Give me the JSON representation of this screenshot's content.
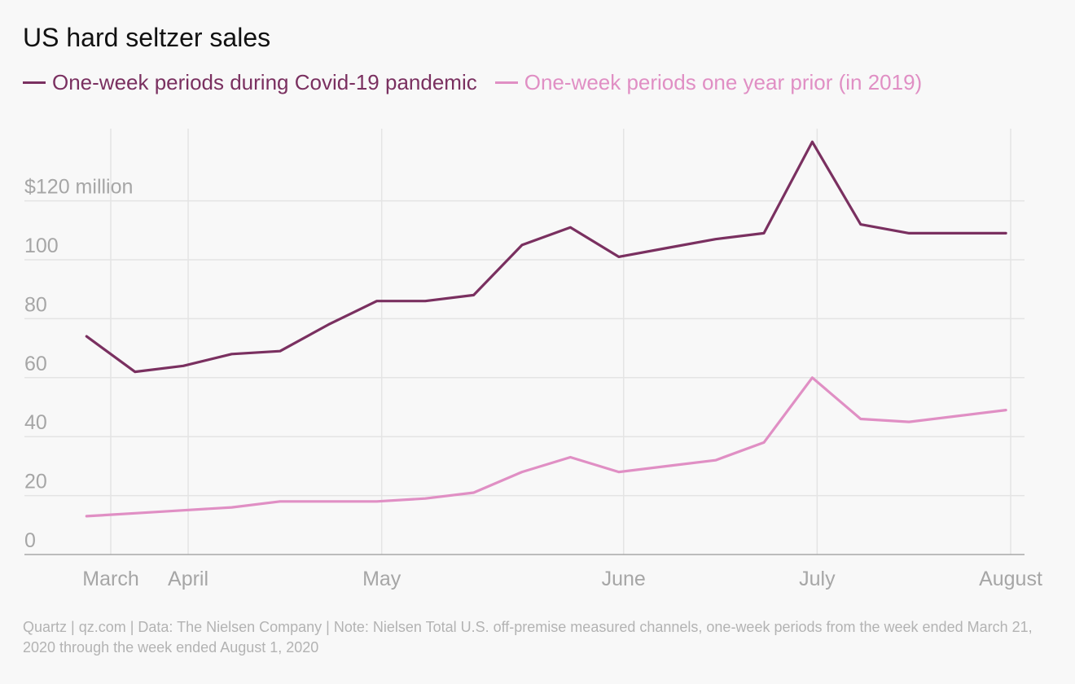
{
  "chart_data": {
    "type": "line",
    "title": "US hard seltzer sales",
    "x_tick_labels": [
      {
        "label": "March",
        "week": 0.5
      },
      {
        "label": "April",
        "week": 2.1
      },
      {
        "label": "May",
        "week": 6.1
      },
      {
        "label": "June",
        "week": 11.1
      },
      {
        "label": "July",
        "week": 15.1
      },
      {
        "label": "August",
        "week": 19.1
      }
    ],
    "y_tick_labels": [
      {
        "label": "0",
        "value": 0
      },
      {
        "label": "20",
        "value": 20
      },
      {
        "label": "40",
        "value": 40
      },
      {
        "label": "60",
        "value": 60
      },
      {
        "label": "80",
        "value": 80
      },
      {
        "label": "100",
        "value": 100
      },
      {
        "label": "$120 million",
        "value": 120
      }
    ],
    "ylim": [
      0,
      145
    ],
    "xlim": [
      0.5,
      19.1
    ],
    "grid": true,
    "legend_position": "top-left",
    "series": [
      {
        "name": "One-week periods during Covid-19 pandemic",
        "color": "#7a3060",
        "values": [
          74,
          62,
          64,
          68,
          69,
          78,
          86,
          86,
          88,
          105,
          111,
          101,
          104,
          107,
          109,
          140,
          112,
          109,
          109,
          109
        ]
      },
      {
        "name": "One-week periods one year prior (in 2019)",
        "color": "#e08fc4",
        "values": [
          13,
          14,
          15,
          16,
          18,
          18,
          18,
          19,
          21,
          28,
          33,
          28,
          30,
          32,
          38,
          60,
          46,
          45,
          47,
          49
        ]
      }
    ]
  },
  "footnote": "Quartz | qz.com | Data: The Nielsen Company | Note: Nielsen Total U.S. off-premise measured channels, one-week periods from the week ended March 21, 2020 through the week ended August 1, 2020"
}
